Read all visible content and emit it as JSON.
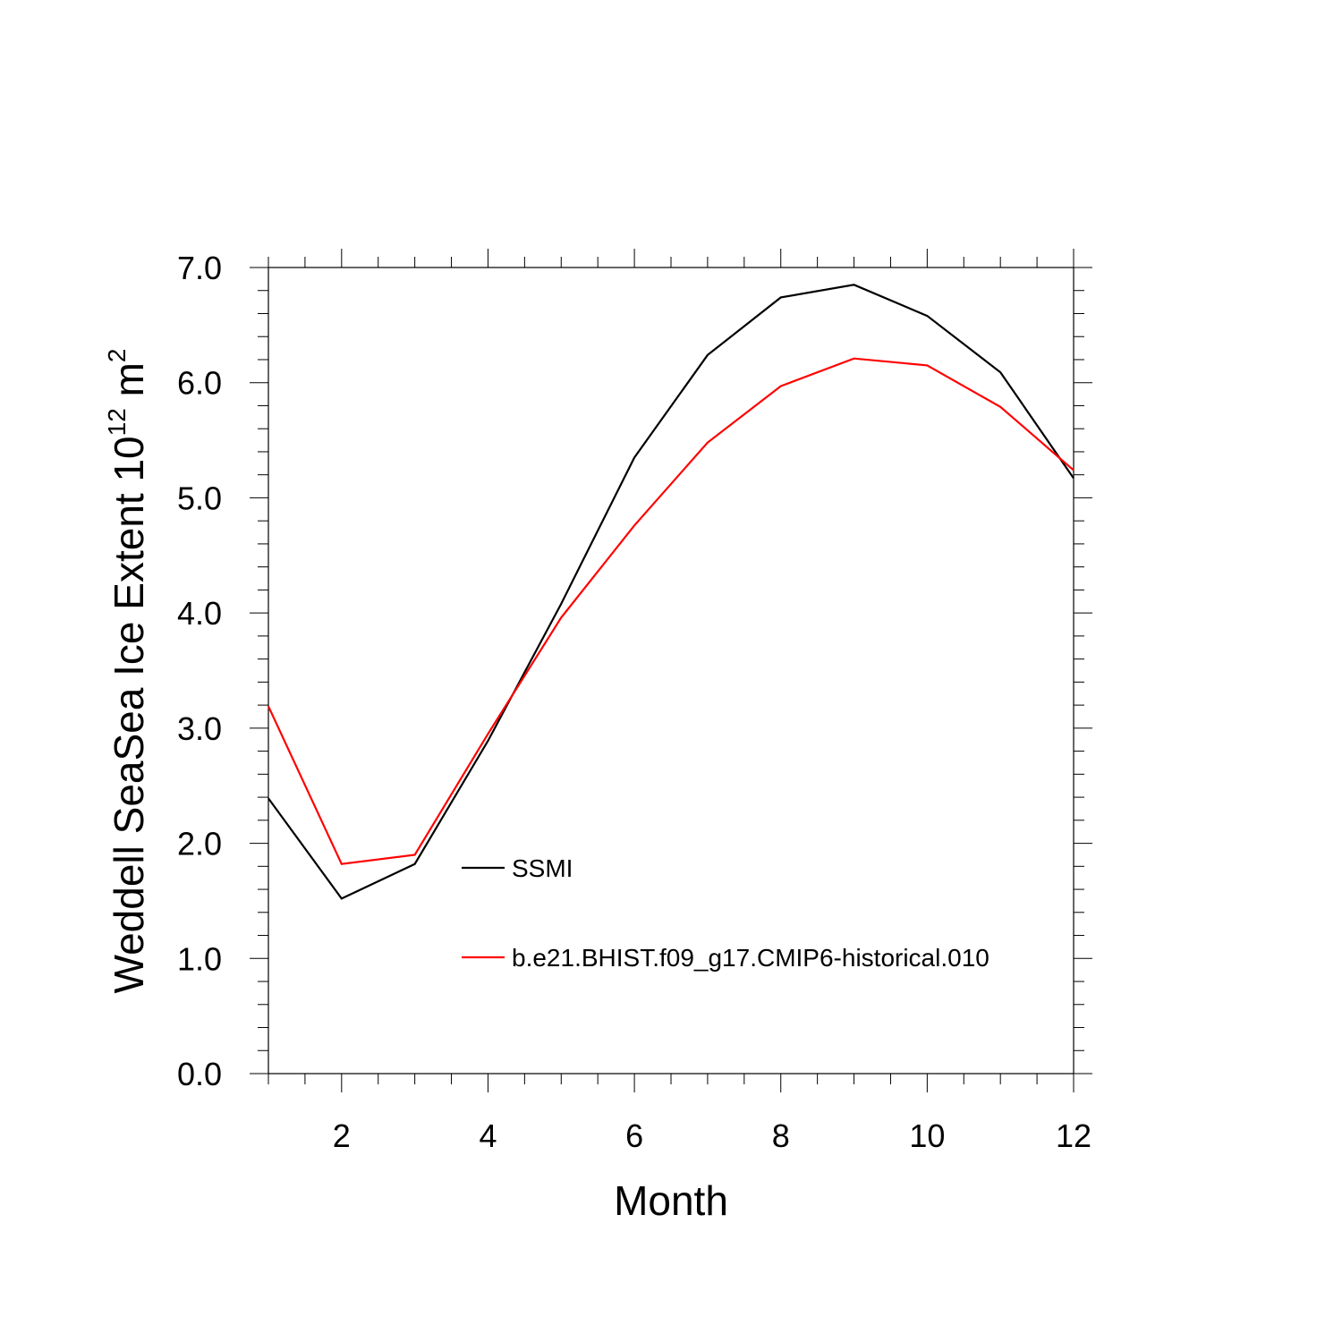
{
  "chart_data": {
    "type": "line",
    "title": "",
    "xlabel": "Month",
    "ylabel": "Weddell SeaSea Ice Extent 10",
    "ylabel_superscript": "12",
    "ylabel_unit": " m",
    "ylabel_unit_superscript": "2",
    "xlim": [
      1,
      12
    ],
    "ylim": [
      0,
      7
    ],
    "xticks": [
      2,
      4,
      6,
      8,
      10,
      12
    ],
    "xtick_labels": [
      "2",
      "4",
      "6",
      "8",
      "10",
      "12"
    ],
    "yticks": [
      0,
      1,
      2,
      3,
      4,
      5,
      6,
      7
    ],
    "ytick_labels": [
      "0.0",
      "1.0",
      "2.0",
      "3.0",
      "4.0",
      "5.0",
      "6.0",
      "7.0"
    ],
    "grid": false,
    "legend_position": "center",
    "x": [
      1,
      2,
      3,
      4,
      5,
      6,
      7,
      8,
      9,
      10,
      11,
      12
    ],
    "series": [
      {
        "name": "SSMI",
        "color": "#000000",
        "values": [
          2.39,
          1.52,
          1.82,
          2.89,
          4.08,
          5.35,
          6.24,
          6.74,
          6.85,
          6.58,
          6.09,
          5.17
        ]
      },
      {
        "name": "b.e21.BHIST.f09_g17.CMIP6-historical.010",
        "color": "#ff0000",
        "values": [
          3.19,
          1.82,
          1.9,
          2.95,
          3.96,
          4.76,
          5.48,
          5.97,
          6.21,
          6.15,
          5.79,
          5.24
        ]
      }
    ]
  }
}
